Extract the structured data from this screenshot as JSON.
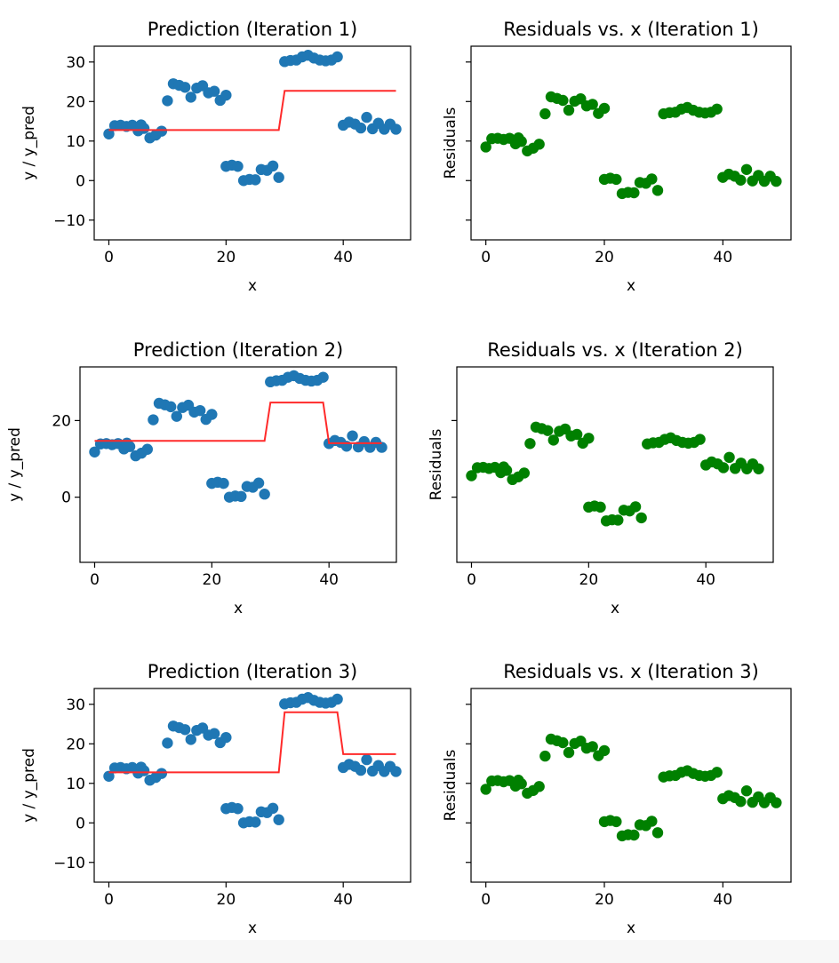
{
  "colors": {
    "points_prediction": "#1f77b4",
    "points_residuals": "#008000",
    "prediction_line": "#ff2a2a",
    "axes": "#000000"
  },
  "y_data": [
    11.8,
    13.9,
    14.0,
    13.7,
    14.0,
    12.6,
    14.1,
    13.2,
    10.8,
    11.5,
    12.5,
    20.2,
    24.5,
    24.1,
    23.6,
    21.1,
    23.4,
    24.0,
    22.2,
    22.6,
    20.3,
    21.6,
    3.6,
    3.9,
    3.6,
    0.0,
    0.3,
    0.2,
    2.8,
    2.6,
    3.7,
    0.8,
    30.1,
    30.4,
    30.5,
    31.3,
    31.7,
    31.0,
    30.5,
    30.3,
    30.5,
    31.3,
    14.0,
    14.8,
    14.3,
    13.3,
    16.0,
    13.1,
    14.5,
    13.0,
    14.3,
    13.0
  ],
  "x_data": [
    0,
    1,
    2,
    3,
    4,
    5,
    5.5,
    6,
    7,
    8,
    9,
    10,
    11,
    12,
    13,
    14,
    15,
    16,
    17,
    18,
    19,
    20,
    20,
    21,
    22,
    23,
    24,
    25,
    26,
    27,
    28,
    29,
    30,
    31,
    32,
    33,
    34,
    35,
    36,
    37,
    38,
    39,
    40,
    41,
    42,
    43,
    44,
    45,
    46,
    47,
    48,
    49
  ],
  "chart_data": [
    {
      "type": "scatter",
      "title": "Prediction (Iteration 1)",
      "xlabel": "x",
      "ylabel": "y / y_pred",
      "xlim": [
        -2.5,
        51.5
      ],
      "ylim": [
        -15,
        34
      ],
      "xticks": [
        "0",
        "20",
        "40"
      ],
      "yticks": [
        "−10",
        "0",
        "10",
        "20",
        "30"
      ],
      "series": [
        {
          "name": "y",
          "style": "points"
        },
        {
          "name": "y_pred",
          "style": "step_line",
          "x": [
            0,
            29,
            30,
            49
          ],
          "y": [
            12.8,
            12.8,
            22.7,
            22.7
          ]
        }
      ]
    },
    {
      "type": "scatter",
      "title": "Residuals vs. x (Iteration 1)",
      "xlabel": "x",
      "ylabel": "Residuals",
      "xlim": [
        -2.5,
        51.5
      ],
      "ylim": [
        -15,
        34
      ],
      "xticks": [
        "0",
        "20",
        "40"
      ],
      "yticks": [],
      "series": [
        {
          "name": "residuals",
          "style": "points"
        }
      ]
    },
    {
      "type": "scatter",
      "title": "Prediction (Iteration 2)",
      "xlabel": "x",
      "ylabel": "y / y_pred",
      "xlim": [
        -2.5,
        51.5
      ],
      "ylim": [
        -17,
        34
      ],
      "xticks": [
        "0",
        "20",
        "40"
      ],
      "yticks": [
        "0",
        "20"
      ],
      "series": [
        {
          "name": "y",
          "style": "points"
        },
        {
          "name": "y_pred",
          "style": "step_line",
          "x": [
            0,
            29,
            30,
            39,
            40,
            49
          ],
          "y": [
            14.7,
            14.7,
            24.7,
            24.7,
            14.1,
            14.1
          ]
        }
      ]
    },
    {
      "type": "scatter",
      "title": "Residuals vs. x (Iteration 2)",
      "xlabel": "x",
      "ylabel": "Residuals",
      "xlim": [
        -2.5,
        51.5
      ],
      "ylim": [
        -17,
        34
      ],
      "xticks": [
        "0",
        "20",
        "40"
      ],
      "yticks": [],
      "series": [
        {
          "name": "residuals",
          "style": "points"
        }
      ]
    },
    {
      "type": "scatter",
      "title": "Prediction (Iteration 3)",
      "xlabel": "x",
      "ylabel": "y / y_pred",
      "xlim": [
        -2.5,
        51.5
      ],
      "ylim": [
        -15,
        34
      ],
      "xticks": [
        "0",
        "20",
        "40"
      ],
      "yticks": [
        "−10",
        "0",
        "10",
        "20",
        "30"
      ],
      "series": [
        {
          "name": "y",
          "style": "points"
        },
        {
          "name": "y_pred",
          "style": "step_line",
          "x": [
            0,
            29,
            30,
            39,
            40,
            49
          ],
          "y": [
            12.8,
            12.8,
            28.0,
            28.0,
            17.4,
            17.4
          ]
        }
      ]
    },
    {
      "type": "scatter",
      "title": "Residuals vs. x (Iteration 3)",
      "xlabel": "x",
      "ylabel": "Residuals",
      "xlim": [
        -2.5,
        51.5
      ],
      "ylim": [
        -15,
        34
      ],
      "xticks": [
        "0",
        "20",
        "40"
      ],
      "yticks": [],
      "series": [
        {
          "name": "residuals",
          "style": "points"
        }
      ]
    }
  ]
}
